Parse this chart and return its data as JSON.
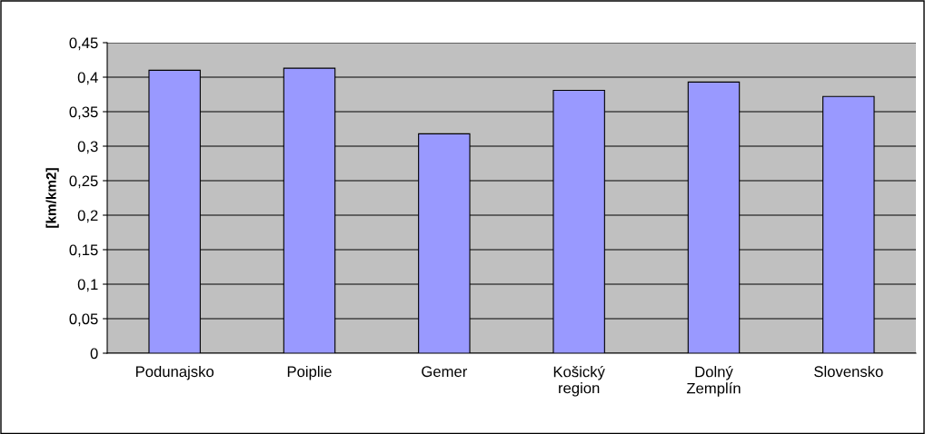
{
  "chart_data": {
    "type": "bar",
    "ylabel": "[km/km2]",
    "categories": [
      "Podunajsko",
      "Poiplie",
      "Gemer",
      "Košický\nregion",
      "Dolný\nZemplín",
      "Slovensko"
    ],
    "values": [
      0.41,
      0.413,
      0.318,
      0.381,
      0.393,
      0.372
    ],
    "color": "#9999ff",
    "ylim": [
      0,
      0.45
    ],
    "yticks": [
      0,
      {
        "value": 0.05,
        "label": "0,05"
      },
      {
        "value": 0.1,
        "label": "0,1"
      },
      {
        "value": 0.15,
        "label": "0,15"
      },
      {
        "value": 0.2,
        "label": "0,2"
      },
      {
        "value": 0.25,
        "label": "0,25"
      },
      {
        "value": 0.3,
        "label": "0,3"
      },
      {
        "value": 0.35,
        "label": "0,35"
      },
      {
        "value": 0.4,
        "label": "0,4"
      },
      {
        "value": 0.45,
        "label": "0,45"
      }
    ],
    "grid": "y",
    "legend": false
  }
}
